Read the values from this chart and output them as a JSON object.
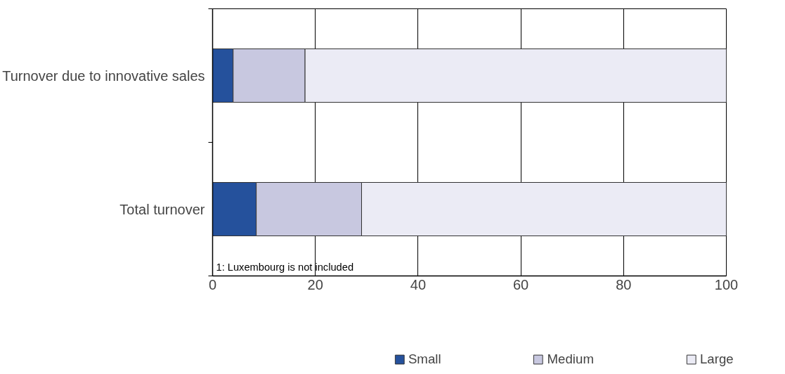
{
  "chart_data": {
    "type": "bar",
    "orientation": "horizontal",
    "stacked": true,
    "categories": [
      "Turnover due to innovative sales",
      "Total turnover"
    ],
    "series": [
      {
        "name": "Small",
        "color": "#25519c",
        "values": [
          4,
          8.5
        ]
      },
      {
        "name": "Medium",
        "color": "#c8c8e0",
        "values": [
          14,
          20.5
        ]
      },
      {
        "name": "Large",
        "color": "#ebebf5",
        "values": [
          82,
          71
        ]
      }
    ],
    "xlim": [
      0,
      100
    ],
    "xticks": [
      0,
      20,
      40,
      60,
      80,
      100
    ],
    "grid": "x",
    "legend": "bottom",
    "annotations": [
      "1: Luxembourg is not included"
    ]
  }
}
